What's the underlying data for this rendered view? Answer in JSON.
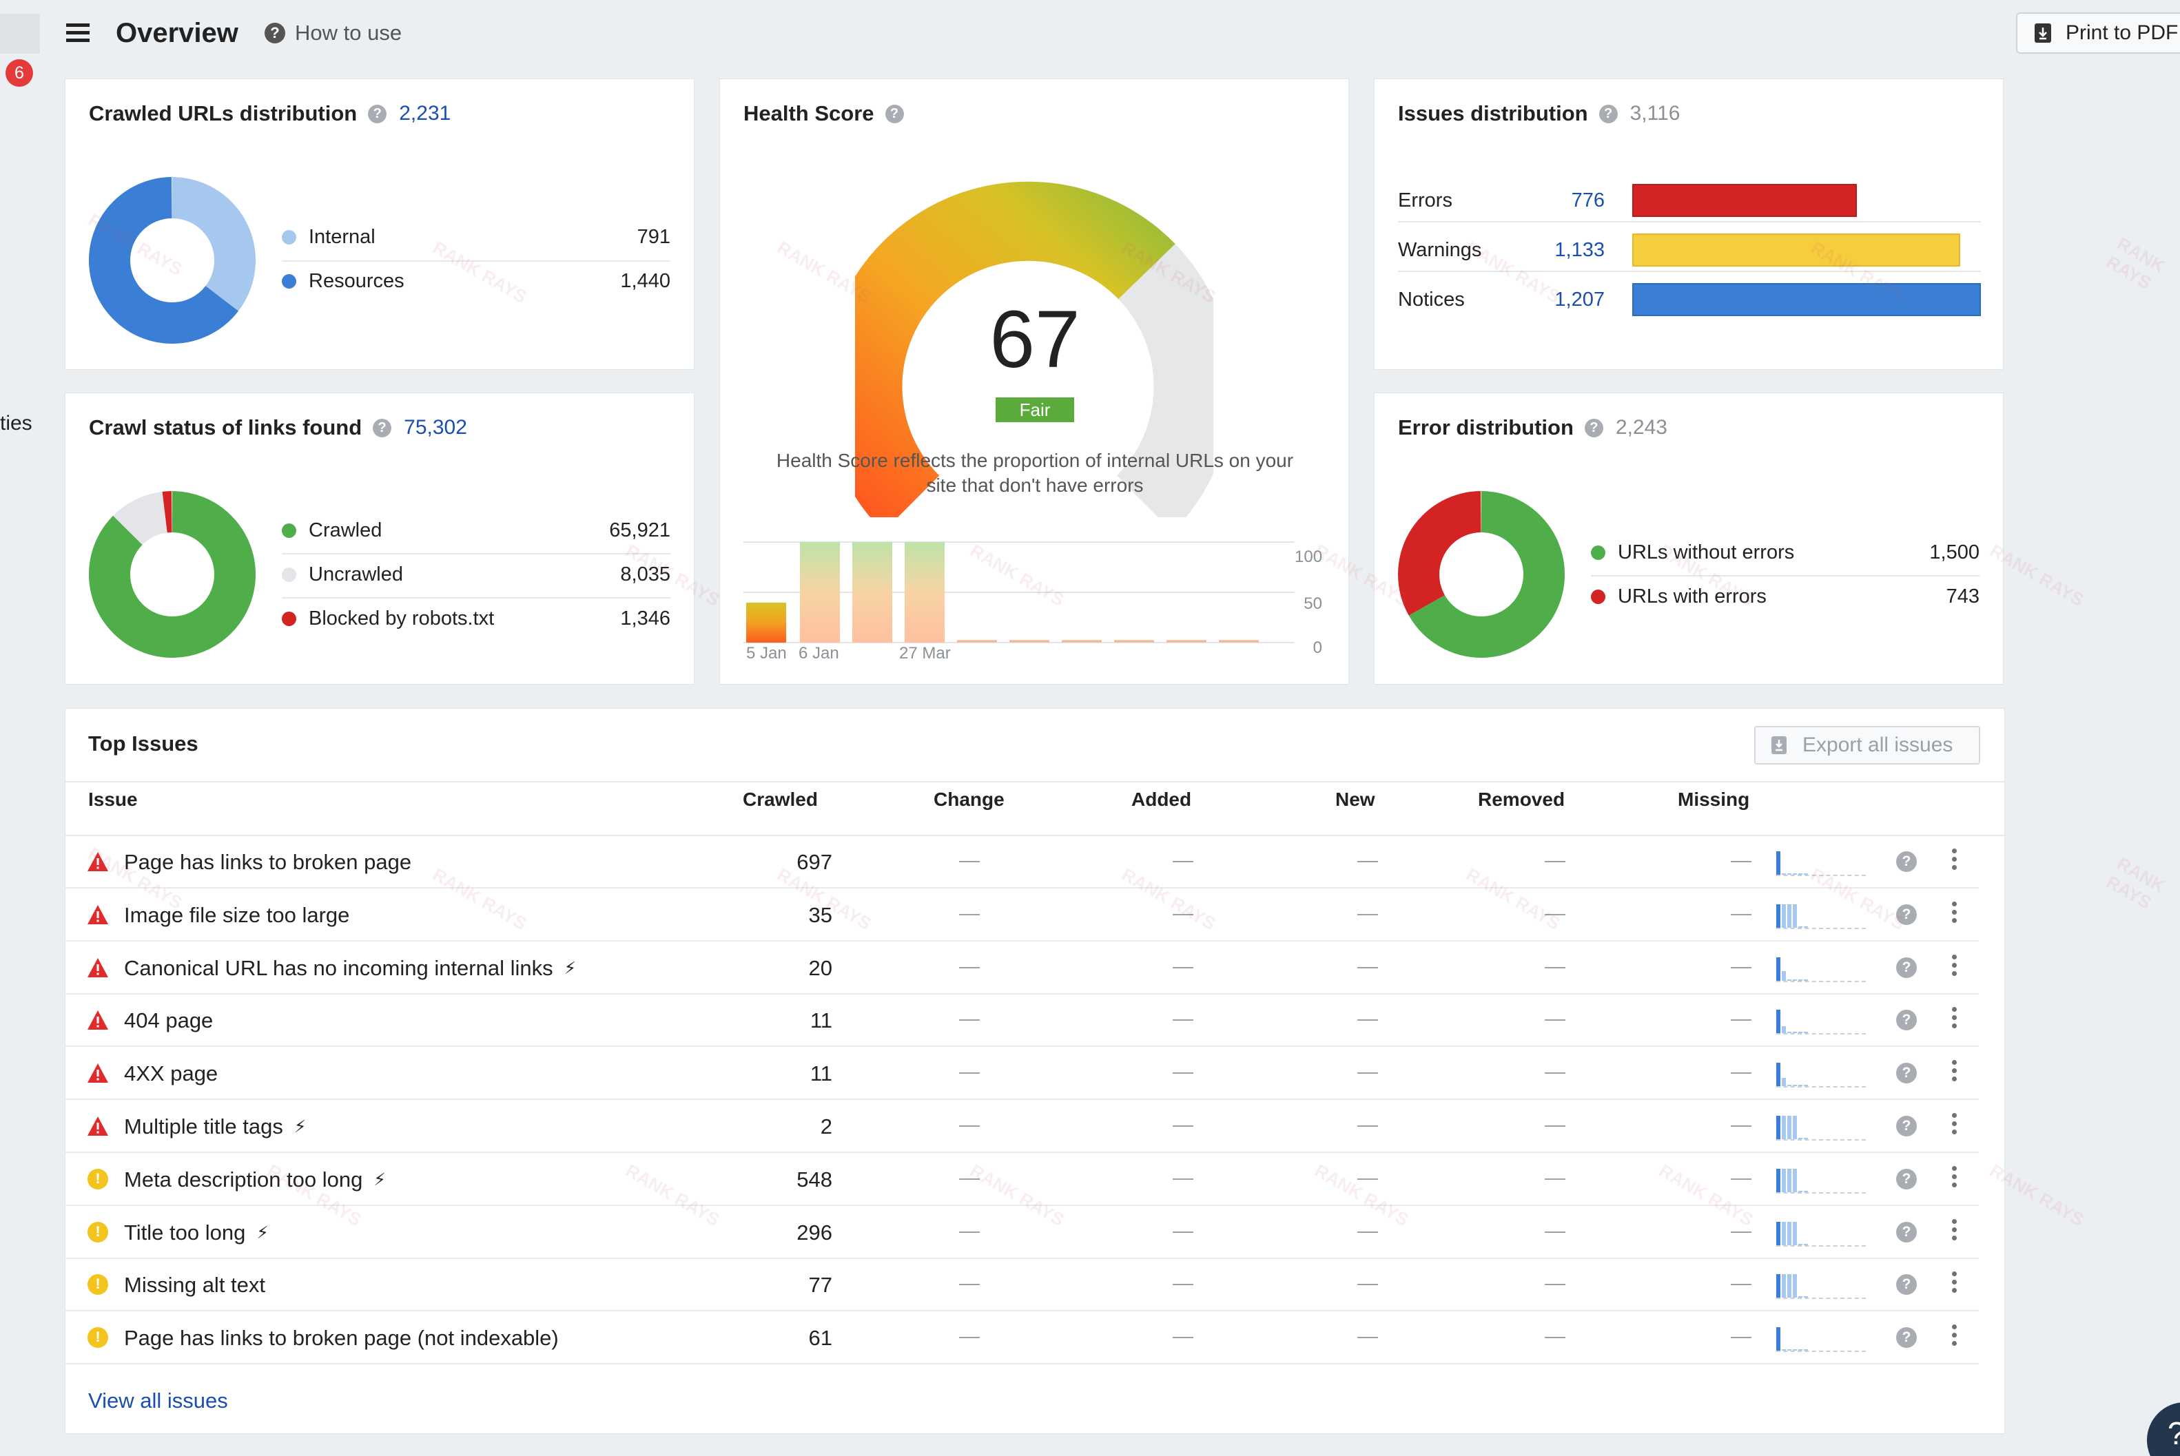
{
  "header": {
    "title": "Overview",
    "how_to_use": "How to use",
    "print_label": "Print to PDF",
    "badge_count": "6",
    "side_text": "ties"
  },
  "crawled": {
    "title": "Crawled URLs distribution",
    "total": "2,231",
    "legend": [
      {
        "label": "Internal",
        "value": "791",
        "color": "#a7c8ee"
      },
      {
        "label": "Resources",
        "value": "1,440",
        "color": "#3a7fd5"
      }
    ]
  },
  "health": {
    "title": "Health Score",
    "score": "67",
    "rating": "Fair",
    "level": 0.67,
    "description_line1": "Health Score reflects the proportion of internal URLs on your",
    "description_line2": "site that don't have errors",
    "chart_y_ticks": [
      "100",
      "50",
      "0"
    ],
    "chart_x_ticks": [
      "5 Jan",
      "6 Jan",
      "27 Mar"
    ]
  },
  "issues_dist": {
    "title": "Issues distribution",
    "total": "3,116",
    "rows": [
      {
        "label": "Errors",
        "value": "776",
        "color": "#d42323"
      },
      {
        "label": "Warnings",
        "value": "1,133",
        "color": "#f6cd3c"
      },
      {
        "label": "Notices",
        "value": "1,207",
        "color": "#3a7fd5"
      }
    ]
  },
  "crawl_status": {
    "title": "Crawl status of links found",
    "total": "75,302",
    "legend": [
      {
        "label": "Crawled",
        "value": "65,921",
        "color": "#4fae4a"
      },
      {
        "label": "Uncrawled",
        "value": "8,035",
        "color": "#e3e5e8"
      },
      {
        "label": "Blocked by robots.txt",
        "value": "1,346",
        "color": "#d42323"
      }
    ]
  },
  "error_dist": {
    "title": "Error distribution",
    "total": "2,243",
    "legend": [
      {
        "label": "URLs without errors",
        "value": "1,500",
        "color": "#4fae4a"
      },
      {
        "label": "URLs with errors",
        "value": "743",
        "color": "#d42323"
      }
    ]
  },
  "top_issues": {
    "title": "Top Issues",
    "export_label": "Export all issues",
    "view_all": "View all issues",
    "columns": [
      "Issue",
      "Crawled",
      "Change",
      "Added",
      "New",
      "Removed",
      "Missing"
    ],
    "dash": "—",
    "rows": [
      {
        "type": "error",
        "name": "Page has links to broken page",
        "bolt": false,
        "crawled": "697"
      },
      {
        "type": "error",
        "name": "Image file size too large",
        "bolt": false,
        "crawled": "35"
      },
      {
        "type": "error",
        "name": "Canonical URL has no incoming internal links",
        "bolt": true,
        "crawled": "20"
      },
      {
        "type": "error",
        "name": "404 page",
        "bolt": false,
        "crawled": "11"
      },
      {
        "type": "error",
        "name": "4XX page",
        "bolt": false,
        "crawled": "11"
      },
      {
        "type": "error",
        "name": "Multiple title tags",
        "bolt": true,
        "crawled": "2"
      },
      {
        "type": "warning",
        "name": "Meta description too long",
        "bolt": true,
        "crawled": "548"
      },
      {
        "type": "warning",
        "name": "Title too long",
        "bolt": true,
        "crawled": "296"
      },
      {
        "type": "warning",
        "name": "Missing alt text",
        "bolt": false,
        "crawled": "77"
      },
      {
        "type": "warning",
        "name": "Page has links to broken page (not indexable)",
        "bolt": false,
        "crawled": "61"
      }
    ]
  },
  "watermark": "RANK RAYS"
}
